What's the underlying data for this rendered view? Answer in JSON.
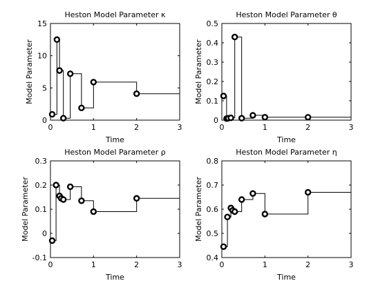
{
  "chart_data": [
    {
      "type": "line",
      "title": "Heston Model Parameter κ",
      "xlabel": "Time",
      "ylabel": "Model Parameter",
      "xlim": [
        0,
        3
      ],
      "ylim": [
        0,
        15
      ],
      "xticks": [
        "0",
        "1",
        "2",
        "3"
      ],
      "yticks": [
        "0",
        "5",
        "10",
        "15"
      ],
      "yticks_values": [
        0,
        5,
        10,
        15
      ],
      "xticks_values": [
        0,
        1,
        2,
        3
      ],
      "grid": false,
      "step": "post",
      "x": [
        0.04,
        0.15,
        0.21,
        0.3,
        0.46,
        0.72,
        1.0,
        2.0
      ],
      "y": [
        0.9,
        12.5,
        7.7,
        0.3,
        7.2,
        1.9,
        5.9,
        4.1
      ],
      "line_end_x": 3.0
    },
    {
      "type": "line",
      "title": "Heston Model Parameter θ",
      "xlabel": "Time",
      "ylabel": "Model Parameter",
      "xlim": [
        0,
        3
      ],
      "ylim": [
        0,
        0.5
      ],
      "xticks": [
        "0",
        "1",
        "2",
        "3"
      ],
      "yticks": [
        "0",
        "0.1",
        "0.2",
        "0.3",
        "0.4",
        "0.5"
      ],
      "yticks_values": [
        0,
        0.1,
        0.2,
        0.3,
        0.4,
        0.5
      ],
      "xticks_values": [
        0,
        1,
        2,
        3
      ],
      "grid": false,
      "step": "post",
      "x": [
        0.04,
        0.11,
        0.15,
        0.21,
        0.3,
        0.46,
        0.72,
        1.0,
        2.0
      ],
      "y": [
        0.125,
        0.008,
        0.01,
        0.012,
        0.43,
        0.01,
        0.025,
        0.015,
        0.015
      ],
      "line_end_x": 3.0
    },
    {
      "type": "line",
      "title": "Heston Model Parameter ρ",
      "xlabel": "Time",
      "ylabel": "Model Parameter",
      "xlim": [
        0,
        3
      ],
      "ylim": [
        -0.1,
        0.3
      ],
      "xticks": [
        "0",
        "1",
        "2",
        "3"
      ],
      "yticks": [
        "-0.1",
        "0",
        "0.1",
        "0.2",
        "0.3"
      ],
      "yticks_values": [
        -0.1,
        0,
        0.1,
        0.2,
        0.3
      ],
      "xticks_values": [
        0,
        1,
        2,
        3
      ],
      "grid": false,
      "step": "post",
      "x": [
        0.04,
        0.13,
        0.21,
        0.25,
        0.3,
        0.46,
        0.72,
        1.0,
        2.0
      ],
      "y": [
        -0.03,
        0.2,
        0.155,
        0.145,
        0.14,
        0.193,
        0.135,
        0.09,
        0.145
      ],
      "line_end_x": 3.0
    },
    {
      "type": "line",
      "title": "Heston Model Parameter η",
      "xlabel": "Time",
      "ylabel": "Model Parameter",
      "xlim": [
        0,
        3
      ],
      "ylim": [
        0.4,
        0.8
      ],
      "xticks": [
        "0",
        "1",
        "2",
        "3"
      ],
      "yticks": [
        "0.4",
        "0.5",
        "0.6",
        "0.7",
        "0.8"
      ],
      "yticks_values": [
        0.4,
        0.5,
        0.6,
        0.7,
        0.8
      ],
      "xticks_values": [
        0,
        1,
        2,
        3
      ],
      "grid": false,
      "step": "post",
      "x": [
        0.04,
        0.13,
        0.21,
        0.25,
        0.3,
        0.46,
        0.72,
        1.0,
        2.0
      ],
      "y": [
        0.445,
        0.568,
        0.605,
        0.595,
        0.59,
        0.64,
        0.665,
        0.58,
        0.67
      ],
      "line_end_x": 3.0
    }
  ]
}
